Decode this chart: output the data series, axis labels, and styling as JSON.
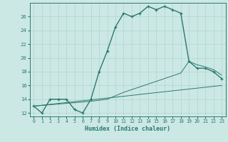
{
  "xlabel": "Humidex (Indice chaleur)",
  "x_values": [
    0,
    1,
    2,
    3,
    4,
    5,
    6,
    7,
    8,
    9,
    10,
    11,
    12,
    13,
    14,
    15,
    16,
    17,
    18,
    19,
    20,
    21,
    22,
    23
  ],
  "humidex_curve": [
    13,
    12,
    14,
    14,
    14,
    12.5,
    12,
    14,
    18,
    21,
    24.5,
    26.5,
    26,
    26.5,
    27.5,
    27,
    27.5,
    27,
    26.5,
    19.5,
    18.5,
    18.5,
    18,
    17
  ],
  "line_straight": [
    13,
    13.13,
    13.26,
    13.39,
    13.52,
    13.65,
    13.78,
    13.91,
    14.04,
    14.17,
    14.3,
    14.43,
    14.56,
    14.7,
    14.83,
    14.96,
    15.09,
    15.22,
    15.35,
    15.48,
    15.61,
    15.74,
    15.87,
    16.0
  ],
  "line_curved": [
    13,
    13.1,
    13.2,
    13.3,
    13.4,
    13.5,
    13.6,
    13.7,
    13.85,
    14.0,
    14.5,
    15.0,
    15.4,
    15.8,
    16.2,
    16.6,
    17.0,
    17.4,
    17.8,
    19.5,
    19.0,
    18.7,
    18.3,
    17.5
  ],
  "bg_color": "#cce8e4",
  "line_color": "#2a7a6e",
  "grid_color": "#b0d4cf",
  "ylim": [
    11.5,
    28
  ],
  "xlim": [
    -0.5,
    23.5
  ],
  "yticks": [
    12,
    14,
    16,
    18,
    20,
    22,
    24,
    26
  ],
  "xticks": [
    0,
    1,
    2,
    3,
    4,
    5,
    6,
    7,
    8,
    9,
    10,
    11,
    12,
    13,
    14,
    15,
    16,
    17,
    18,
    19,
    20,
    21,
    22,
    23
  ]
}
